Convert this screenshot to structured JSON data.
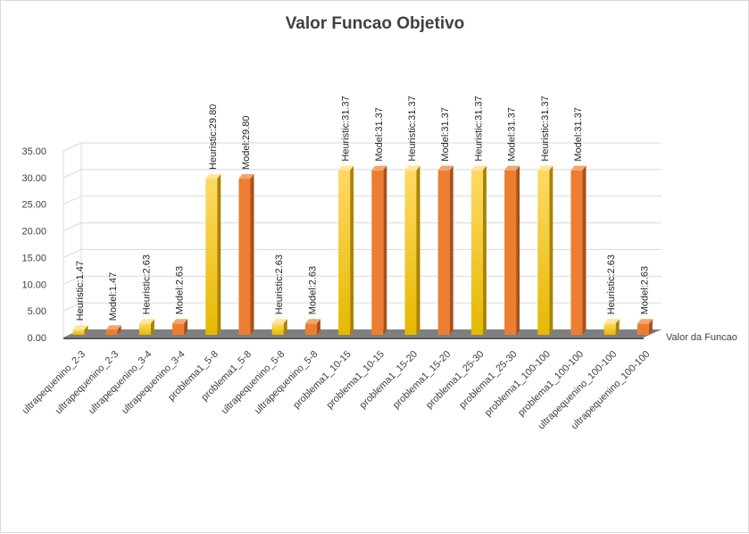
{
  "chart_data": {
    "type": "bar",
    "title": "Valor Funcao Objetivo",
    "xlabel": "",
    "ylabel": "",
    "ylim": [
      0,
      35
    ],
    "ytick_step": 5,
    "ytick_labels": [
      "0.00",
      "5.00",
      "10.00",
      "15.00",
      "20.00",
      "25.00",
      "30.00",
      "35.00"
    ],
    "grid": true,
    "series_axis_label": "Valor da Funcao",
    "categories": [
      "ultrapequenino_2-3",
      "ultrapequenino_2-3",
      "ultrapequenino_3-4",
      "ultrapequenino_3-4",
      "problema1_5-8",
      "problema1_5-8",
      "ultrapequenino_5-8",
      "ultrapequenino_5-8",
      "problema1_10-15",
      "problema1_10-15",
      "problema1_15-20",
      "problema1_15-20",
      "problema1_25-30",
      "problema1_25-30",
      "problema1_100-100",
      "problema1_100-100",
      "ultrapequenino_100-100",
      "ultrapequenino_100-100"
    ],
    "values": [
      1.47,
      1.47,
      2.63,
      2.63,
      29.8,
      29.8,
      2.63,
      2.63,
      31.37,
      31.37,
      31.37,
      31.37,
      31.37,
      31.37,
      31.37,
      31.37,
      2.63,
      2.63
    ],
    "data_labels": [
      "Heuristic:1.47",
      "Model:1.47",
      "Heuristic:2.63",
      "Model:2.63",
      "Heuristic:29.80",
      "Model:29.80",
      "Heuristic:2.63",
      "Model:2.63",
      "Heuristic:31.37",
      "Model:31.37",
      "Heuristic:31.37",
      "Model:31.37",
      "Heuristic:31.37",
      "Model:31.37",
      "Heuristic:31.37",
      "Model:31.37",
      "Heuristic:2.63",
      "Model:2.63"
    ],
    "bar_kinds": [
      "heuristic",
      "model",
      "heuristic",
      "model",
      "heuristic",
      "model",
      "heuristic",
      "model",
      "heuristic",
      "model",
      "heuristic",
      "model",
      "heuristic",
      "model",
      "heuristic",
      "model",
      "heuristic",
      "model"
    ]
  },
  "colors": {
    "heuristic_front_light": "#ffd966",
    "heuristic_front_dark": "#e6b800",
    "heuristic_side": "#a88400",
    "heuristic_top": "#ffe699",
    "model_front": "#ed7d31",
    "model_side": "#a6521c",
    "model_top": "#f4a46d",
    "floor": "#7f7f7f",
    "floor_dark": "#595959",
    "grid": "#d9d9d9",
    "text": "#404040"
  }
}
